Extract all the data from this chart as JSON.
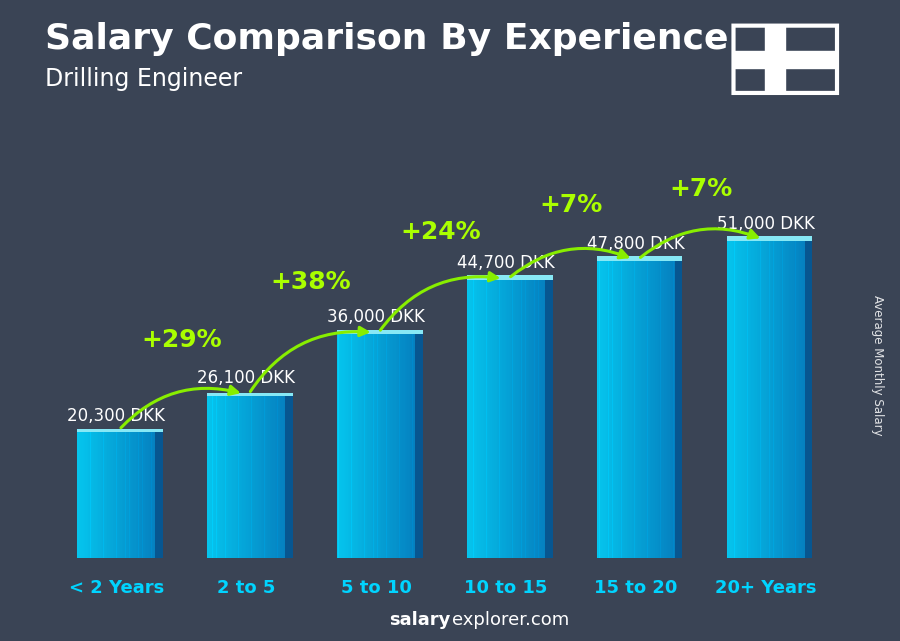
{
  "title": "Salary Comparison By Experience",
  "subtitle": "Drilling Engineer",
  "ylabel": "Average Monthly Salary",
  "footer_bold": "salary",
  "footer_normal": "explorer.com",
  "categories": [
    "< 2 Years",
    "2 to 5",
    "5 to 10",
    "10 to 15",
    "15 to 20",
    "20+ Years"
  ],
  "values": [
    20300,
    26100,
    36000,
    44700,
    47800,
    51000
  ],
  "value_labels": [
    "20,300 DKK",
    "26,100 DKK",
    "36,000 DKK",
    "44,700 DKK",
    "47,800 DKK",
    "51,000 DKK"
  ],
  "pct_labels": [
    null,
    "+29%",
    "+38%",
    "+24%",
    "+7%",
    "+7%"
  ],
  "val_label_side": [
    "left",
    "right",
    "right",
    "right",
    "right",
    "right"
  ],
  "bar_color_left": "#00d4ff",
  "bar_color_right": "#0088cc",
  "bar_color_dark_right": "#005588",
  "bar_top_color": "#80eeff",
  "bg_color": "#3a4455",
  "title_color": "#ffffff",
  "subtitle_color": "#ffffff",
  "value_label_color": "#ffffff",
  "pct_color": "#aaff00",
  "cat_label_color": "#00d4ff",
  "arrow_color": "#88ee00",
  "denmark_red": "#c60c30",
  "denmark_white": "#ffffff",
  "bar_width": 0.6,
  "ylim": [
    0,
    62000
  ],
  "title_fontsize": 26,
  "subtitle_fontsize": 17,
  "cat_fontsize": 13,
  "val_fontsize": 12,
  "pct_fontsize": 18,
  "footer_fontsize": 13
}
